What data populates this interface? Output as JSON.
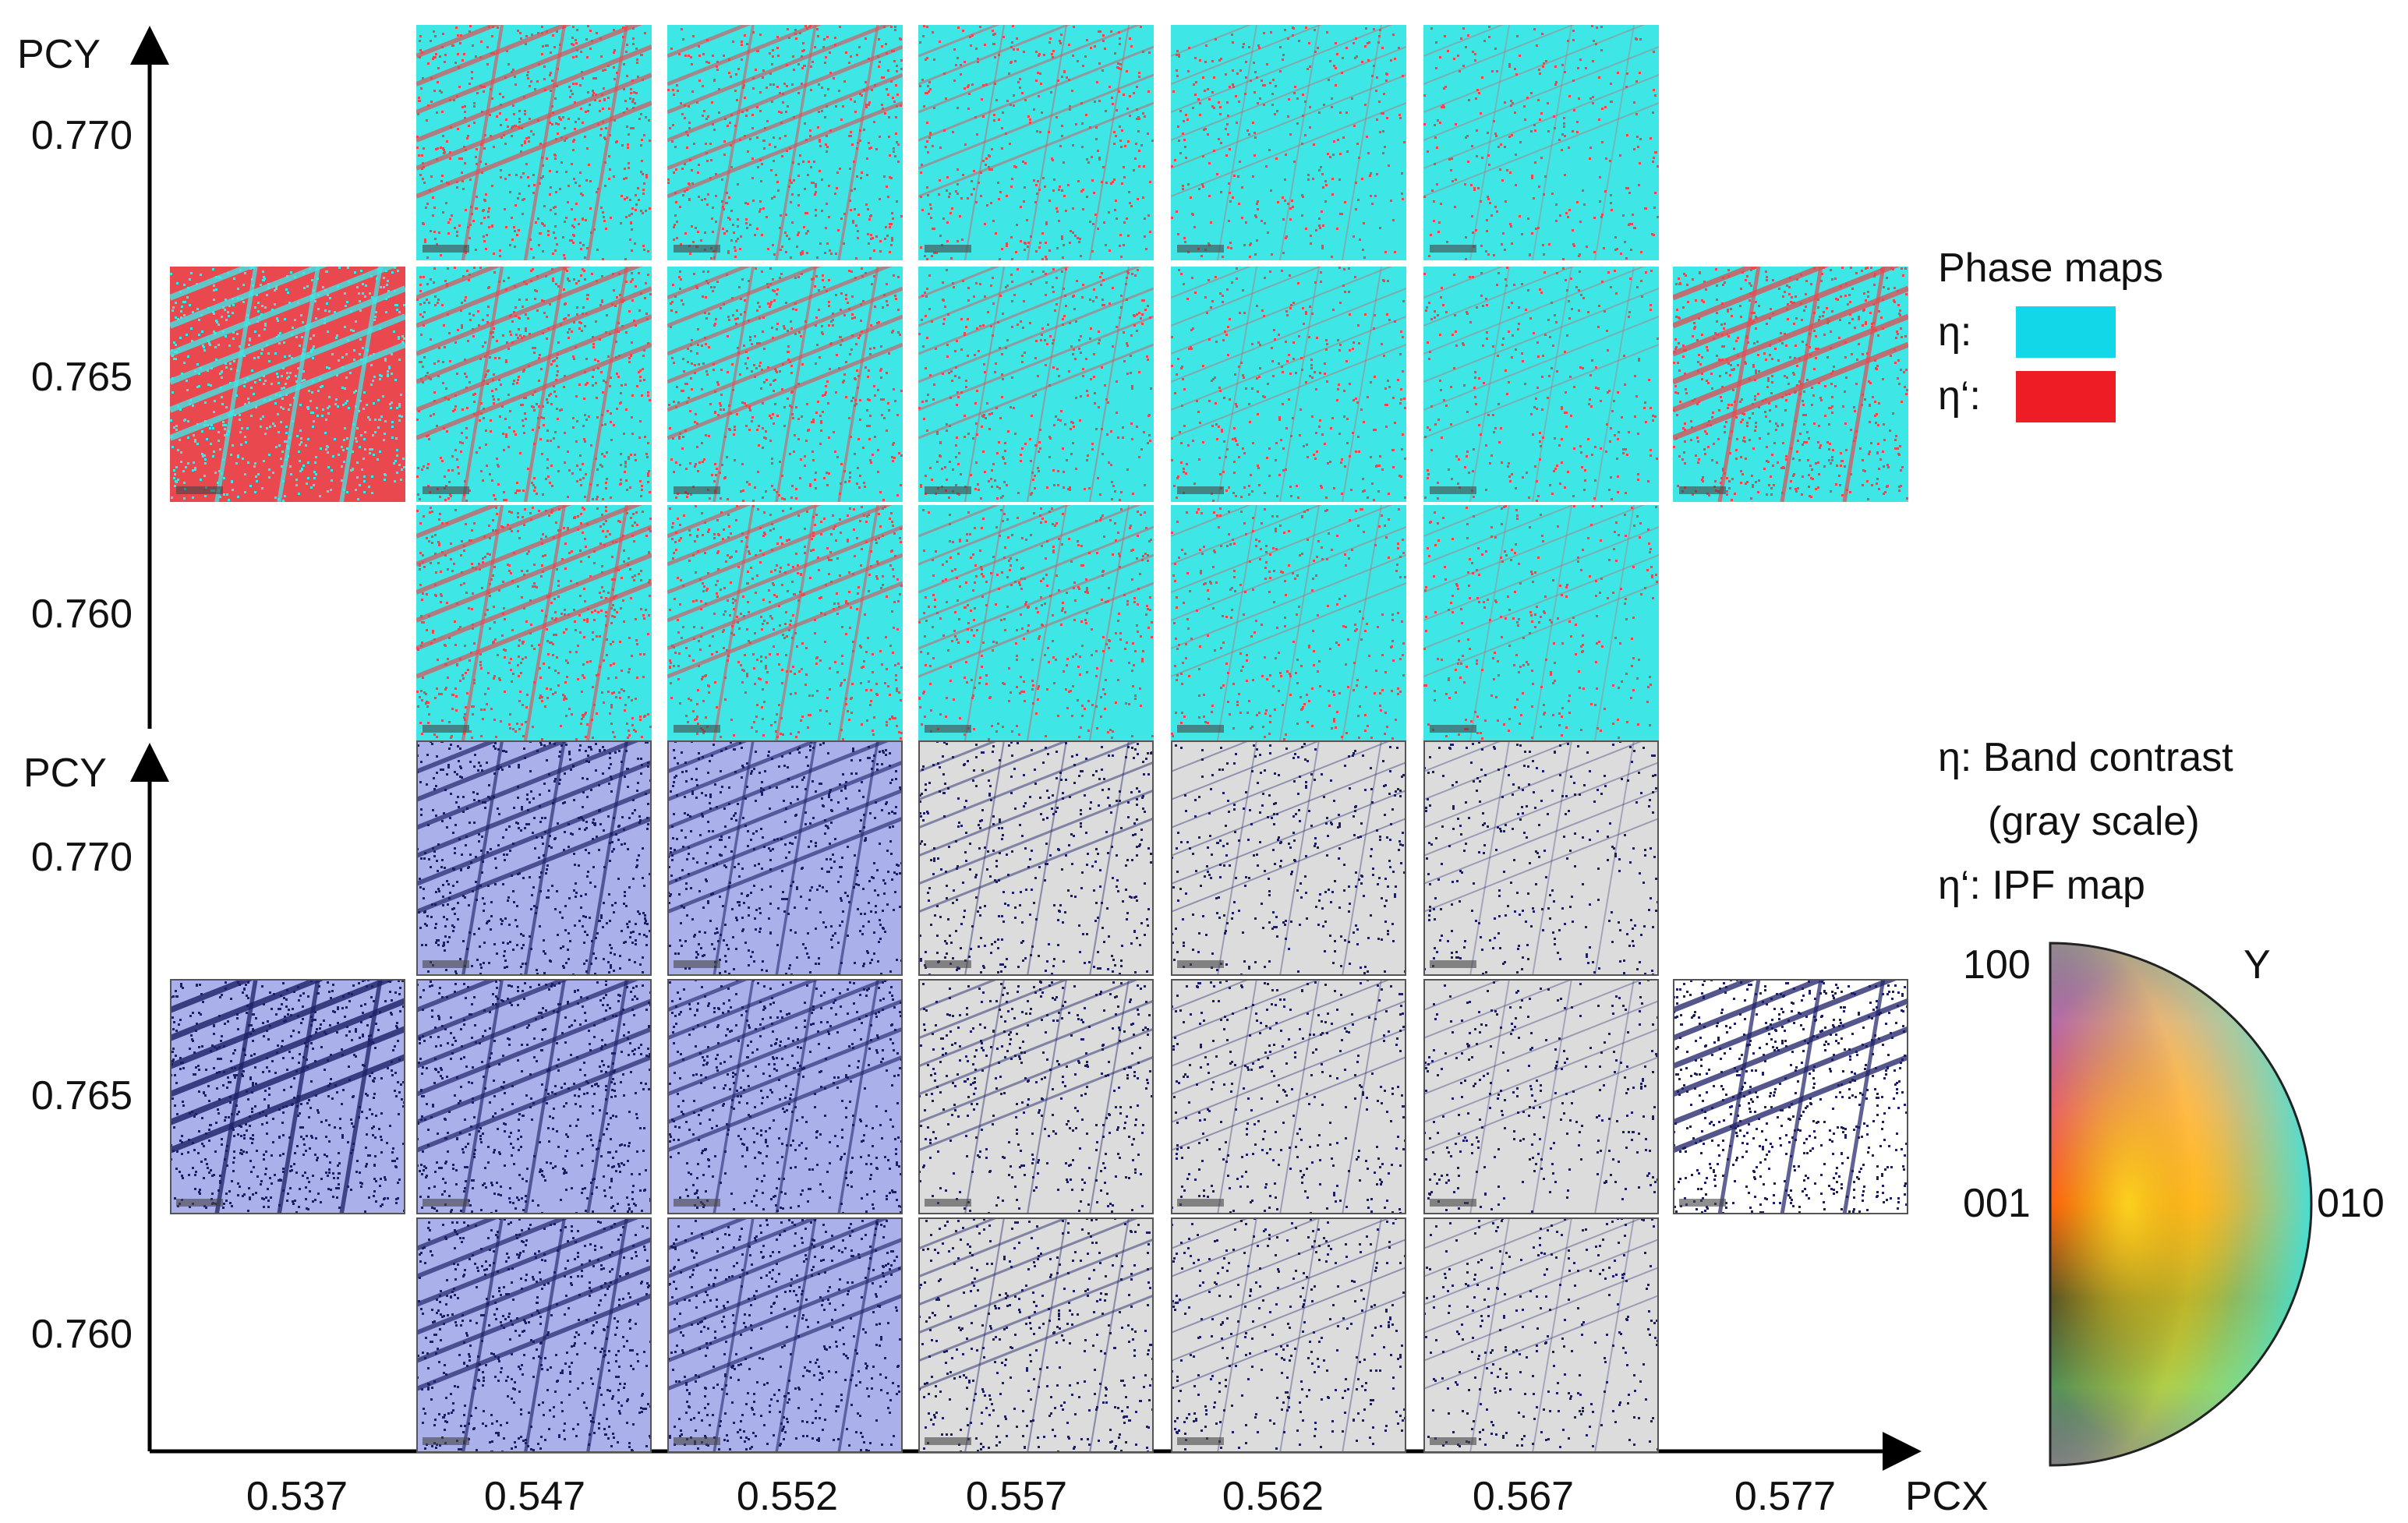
{
  "axes": {
    "upper_y_label": "PCY",
    "lower_y_label": "PCY",
    "x_label": "PCX",
    "y_ticks": [
      "0.770",
      "0.765",
      "0.760"
    ],
    "x_ticks": [
      "0.537",
      "0.547",
      "0.552",
      "0.557",
      "0.562",
      "0.567",
      "0.577"
    ]
  },
  "grid": {
    "pcx_values": [
      0.537,
      0.547,
      0.552,
      0.557,
      0.562,
      0.567,
      0.577
    ],
    "pcy_values": [
      0.77,
      0.765,
      0.76
    ],
    "maps_present": [
      [
        false,
        true,
        true,
        true,
        true,
        true,
        false
      ],
      [
        true,
        true,
        true,
        true,
        true,
        true,
        true
      ],
      [
        false,
        true,
        true,
        true,
        true,
        true,
        false
      ]
    ]
  },
  "legend": {
    "phase_title": "Phase maps",
    "eta_label": "η:",
    "eta_prime_label": "η‘:",
    "eta_color": "#11d7e8",
    "eta_prime_color": "#ee1c24",
    "lower_line1": "η: Band contrast",
    "lower_line2": "(gray scale)",
    "lower_line3": "η‘: IPF map",
    "ipf_100": "100",
    "ipf_y": "Y",
    "ipf_001": "001",
    "ipf_010": "010"
  },
  "colors": {
    "phase_cyan": "#3fe6e6",
    "phase_red": "#e8484e",
    "bc_gray": "#dcdcdc",
    "ipf_navy": "#1c1f66",
    "ipf_lavender": "#a9b0ea"
  }
}
